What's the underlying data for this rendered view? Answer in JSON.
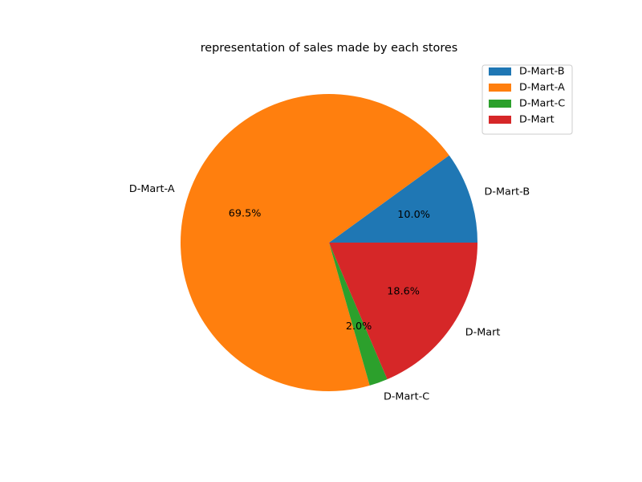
{
  "chart_data": {
    "type": "pie",
    "title": "representation of sales made by each stores",
    "slices": [
      {
        "label": "D-Mart-B",
        "percent": 10.0,
        "percent_label": "10.0%",
        "color": "#1f77b4"
      },
      {
        "label": "D-Mart-A",
        "percent": 69.5,
        "percent_label": "69.5%",
        "color": "#ff7f0e"
      },
      {
        "label": "D-Mart-C",
        "percent": 2.0,
        "percent_label": "2.0%",
        "color": "#2ca02c"
      },
      {
        "label": "D-Mart",
        "percent": 18.6,
        "percent_label": "18.6%",
        "color": "#d62728"
      }
    ],
    "start_angle": 0,
    "direction": "counterclockwise",
    "legend_entries": [
      "D-Mart-B",
      "D-Mart-A",
      "D-Mart-C",
      "D-Mart"
    ],
    "legend_position": "top-right"
  }
}
